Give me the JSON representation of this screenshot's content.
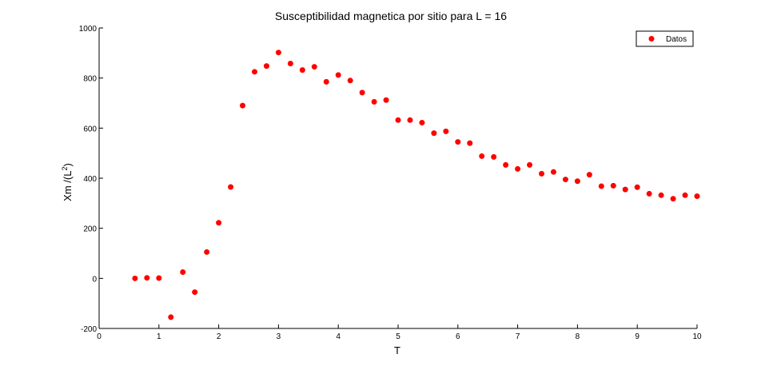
{
  "chart_data": {
    "type": "scatter",
    "title": "Susceptibilidad magnetica por sitio para L = 16",
    "xlabel": "T",
    "ylabel_prefix": "Xm /(L",
    "ylabel_exponent": "2",
    "ylabel_suffix": ")",
    "xlim": [
      0,
      10
    ],
    "ylim": [
      -200,
      1000
    ],
    "xticks": [
      0,
      1,
      2,
      3,
      4,
      5,
      6,
      7,
      8,
      9,
      10
    ],
    "yticks": [
      -200,
      0,
      200,
      400,
      600,
      800,
      1000
    ],
    "grid": false,
    "legend_position": "top-right",
    "series": [
      {
        "name": "Datos",
        "color": "#ff0000",
        "marker": "circle",
        "points": [
          [
            0.6,
            0
          ],
          [
            0.8,
            2
          ],
          [
            1.0,
            1
          ],
          [
            1.2,
            -155
          ],
          [
            1.4,
            25
          ],
          [
            1.6,
            -55
          ],
          [
            1.8,
            105
          ],
          [
            2.0,
            222
          ],
          [
            2.2,
            365
          ],
          [
            2.4,
            690
          ],
          [
            2.6,
            825
          ],
          [
            2.8,
            848
          ],
          [
            3.0,
            902
          ],
          [
            3.2,
            858
          ],
          [
            3.4,
            832
          ],
          [
            3.6,
            845
          ],
          [
            3.8,
            785
          ],
          [
            4.0,
            812
          ],
          [
            4.2,
            790
          ],
          [
            4.4,
            742
          ],
          [
            4.6,
            705
          ],
          [
            4.8,
            712
          ],
          [
            5.0,
            632
          ],
          [
            5.2,
            632
          ],
          [
            5.4,
            622
          ],
          [
            5.6,
            580
          ],
          [
            5.8,
            587
          ],
          [
            6.0,
            545
          ],
          [
            6.2,
            540
          ],
          [
            6.4,
            488
          ],
          [
            6.6,
            485
          ],
          [
            6.8,
            453
          ],
          [
            7.0,
            437
          ],
          [
            7.2,
            453
          ],
          [
            7.4,
            418
          ],
          [
            7.6,
            425
          ],
          [
            7.8,
            395
          ],
          [
            8.0,
            388
          ],
          [
            8.2,
            414
          ],
          [
            8.4,
            368
          ],
          [
            8.6,
            370
          ],
          [
            8.8,
            355
          ],
          [
            9.0,
            364
          ],
          [
            9.2,
            338
          ],
          [
            9.4,
            332
          ],
          [
            9.6,
            318
          ],
          [
            9.8,
            332
          ],
          [
            10.0,
            328
          ]
        ]
      }
    ]
  }
}
